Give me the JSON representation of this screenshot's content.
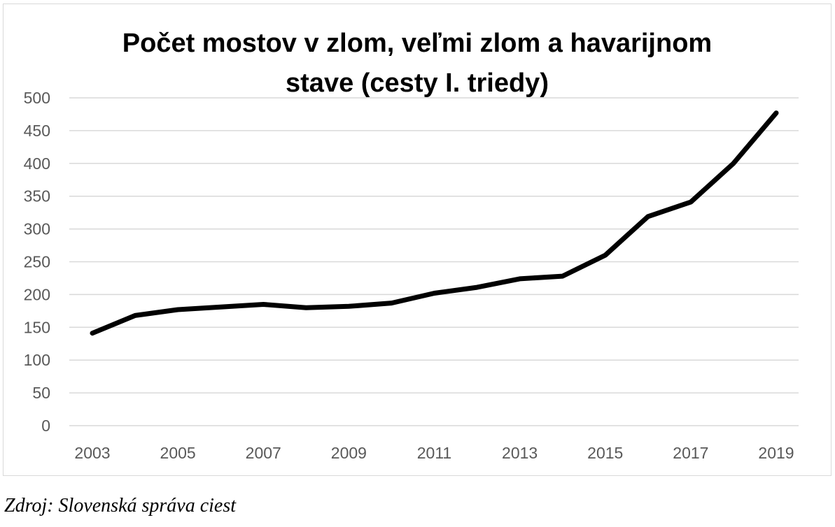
{
  "chart_data": {
    "type": "line",
    "title_lines": [
      "Počet mostov v zlom, veľmi zlom a havarijnom",
      "stave (cesty I. triedy)"
    ],
    "xlabel": "",
    "ylabel": "",
    "x": [
      2003,
      2004,
      2005,
      2006,
      2007,
      2008,
      2009,
      2010,
      2011,
      2012,
      2013,
      2014,
      2015,
      2016,
      2017,
      2018,
      2019
    ],
    "x_tick_labels": [
      "2003",
      "2005",
      "2007",
      "2009",
      "2011",
      "2013",
      "2015",
      "2017",
      "2019"
    ],
    "y_ticks": [
      0,
      50,
      100,
      150,
      200,
      250,
      300,
      350,
      400,
      450,
      500
    ],
    "ylim": [
      0,
      500
    ],
    "grid": "horizontal",
    "legend": "none",
    "series": [
      {
        "color": "#000000",
        "values": [
          141,
          168,
          177,
          181,
          185,
          180,
          182,
          187,
          202,
          211,
          224,
          228,
          260,
          319,
          341,
          400,
          477
        ]
      }
    ]
  },
  "source": "Zdroj: Slovenská správa ciest"
}
